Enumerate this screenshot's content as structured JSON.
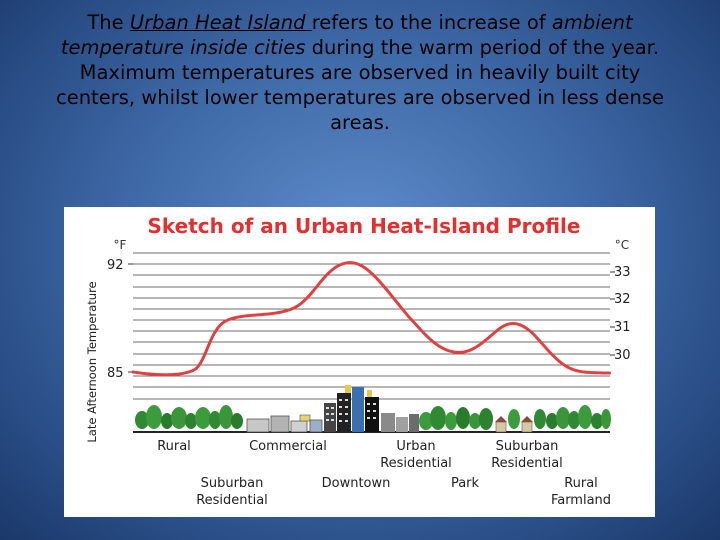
{
  "caption": {
    "part1": "The ",
    "term": "Urban Heat Island ",
    "part2": "refers to the increase of ",
    "italic_phrase": "ambient temperature inside cities",
    "part3": " during the warm period of the year. Maximum temperatures are observed in heavily built city centers, whilst lower temperatures are observed in less dense areas."
  },
  "diagram": {
    "title": "Sketch of an Urban Heat-Island Profile",
    "title_color": "#e03030",
    "curve_color": "#e04040",
    "y_axis_label": "Late Afternoon Temperature",
    "unit_left": "°F",
    "unit_right": "°C",
    "ticks_f": [
      "92",
      "85"
    ],
    "ticks_c": [
      "33",
      "32",
      "31",
      "30"
    ],
    "zones_row1": [
      "Rural",
      "Commercial",
      "Urban Residential",
      "Suburban Residential"
    ],
    "zones_row2": [
      "Suburban Residential",
      "Downtown",
      "Park",
      "Rural Farmland"
    ]
  }
}
